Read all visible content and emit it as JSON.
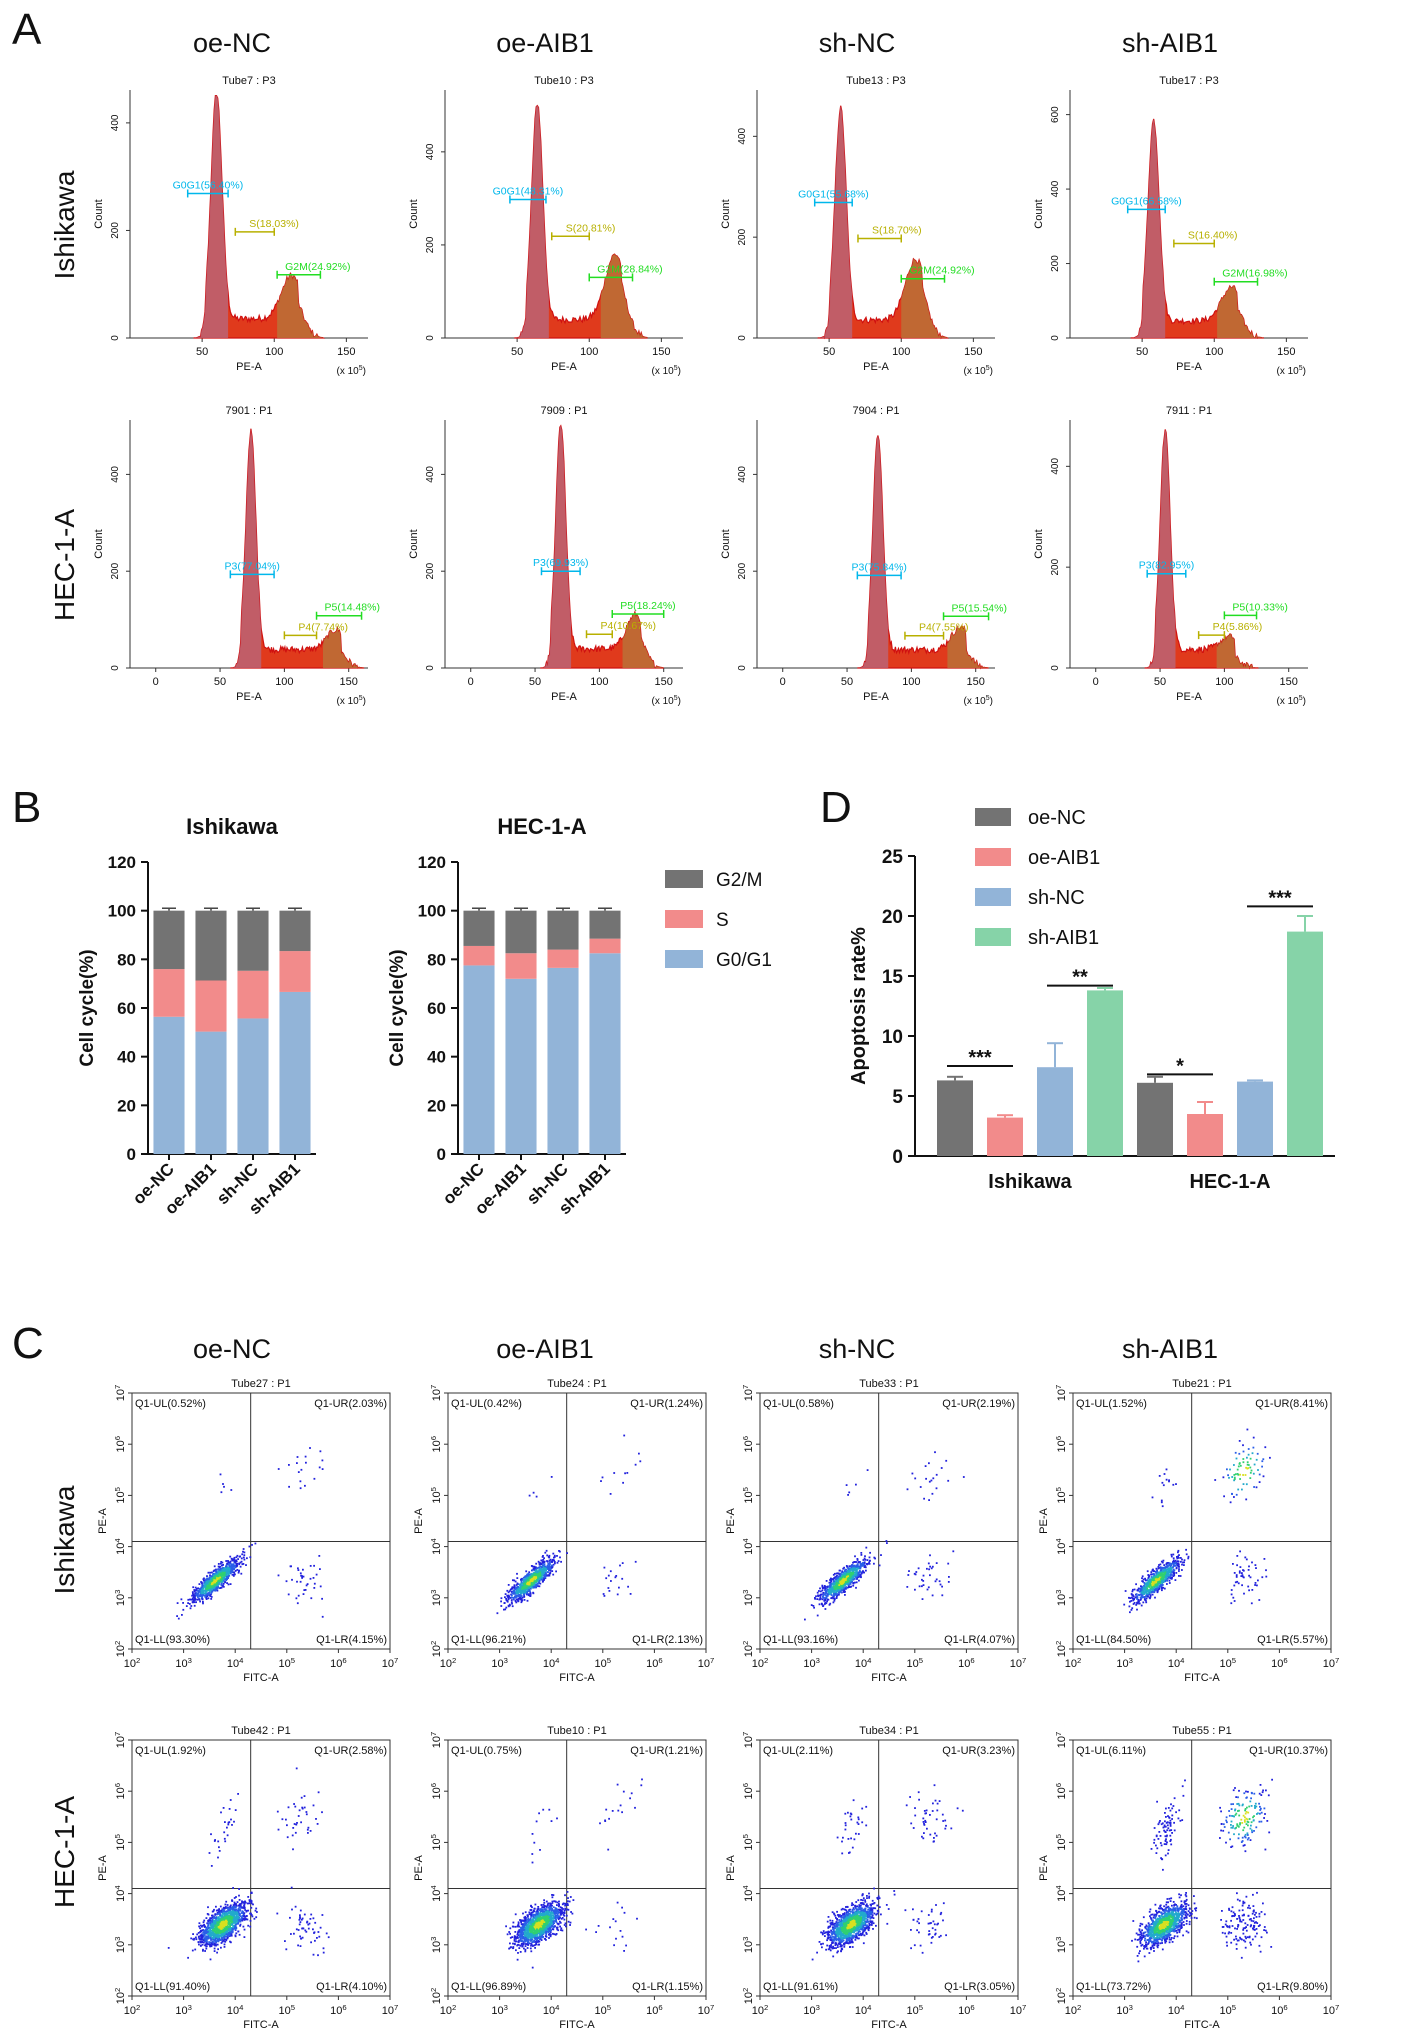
{
  "panel_labels": {
    "A": "A",
    "B": "B",
    "C": "C",
    "D": "D"
  },
  "groups": [
    "oe-NC",
    "oe-AIB1",
    "sh-NC",
    "sh-AIB1"
  ],
  "cell_lines": [
    "Ishikawa",
    "HEC-1-A"
  ],
  "panel_A": {
    "xlabel": "PE-A",
    "ylabel": "Count",
    "x_unit": "(x 10^5)",
    "x_ticks": [
      "50",
      "100",
      "150"
    ],
    "rows": [
      {
        "cell_line": "Ishikawa",
        "x_ticks": [
          "50",
          "100",
          "150"
        ],
        "plots": [
          {
            "title": "Tube7 : P3",
            "y_ticks": [
              "0",
              "200",
              "400"
            ],
            "ymax": 450,
            "x0": 0,
            "peaks": [
              [
                60,
                420
              ],
              [
                112,
                80
              ]
            ],
            "gates": [
              {
                "label": "G0G1(56.40%)",
                "color": "#00b7eb",
                "x1": 40,
                "x2": 68
              },
              {
                "label": "S(18.03%)",
                "color": "#b8b000",
                "x1": 73,
                "x2": 100
              },
              {
                "label": "G2M(24.92%)",
                "color": "#22dd22",
                "x1": 102,
                "x2": 132
              }
            ]
          },
          {
            "title": "Tube10 : P3",
            "y_ticks": [
              "0",
              "200",
              "400"
            ],
            "ymax": 520,
            "x0": 0,
            "peaks": [
              [
                64,
                465
              ],
              [
                118,
                140
              ]
            ],
            "gates": [
              {
                "label": "G0G1(48.31%)",
                "color": "#00b7eb",
                "x1": 45,
                "x2": 70
              },
              {
                "label": "S(20.81%)",
                "color": "#b8b000",
                "x1": 74,
                "x2": 100
              },
              {
                "label": "G2M(28.84%)",
                "color": "#22dd22",
                "x1": 100,
                "x2": 130
              }
            ]
          },
          {
            "title": "Tube13 : P3",
            "y_ticks": [
              "0",
              "200",
              "400"
            ],
            "ymax": 480,
            "x0": 0,
            "peaks": [
              [
                58,
                420
              ],
              [
                110,
                120
              ]
            ],
            "gates": [
              {
                "label": "G0G1(55.68%)",
                "color": "#00b7eb",
                "x1": 40,
                "x2": 66
              },
              {
                "label": "S(18.70%)",
                "color": "#b8b000",
                "x1": 70,
                "x2": 100
              },
              {
                "label": "G2M(24.92%)",
                "color": "#22dd22",
                "x1": 100,
                "x2": 130
              }
            ]
          },
          {
            "title": "Tube17 : P3",
            "y_ticks": [
              "0",
              "200",
              "400",
              "600"
            ],
            "ymax": 650,
            "x0": 0,
            "peaks": [
              [
                58,
                540
              ],
              [
                112,
                90
              ]
            ],
            "gates": [
              {
                "label": "G0G1(66.58%)",
                "color": "#00b7eb",
                "x1": 40,
                "x2": 66
              },
              {
                "label": "S(16.40%)",
                "color": "#b8b000",
                "x1": 72,
                "x2": 100
              },
              {
                "label": "G2M(16.98%)",
                "color": "#22dd22",
                "x1": 100,
                "x2": 130
              }
            ]
          }
        ]
      },
      {
        "cell_line": "HEC-1-A",
        "x_ticks": [
          "0",
          "50",
          "100",
          "150"
        ],
        "plots": [
          {
            "title": "7901 : P1",
            "y_ticks": [
              "0",
              "200",
              "400"
            ],
            "ymax": 500,
            "x0": -20,
            "peaks": [
              [
                74,
                450
              ],
              [
                140,
                40
              ]
            ],
            "gates": [
              {
                "label": "P3(77.04%)",
                "color": "#00b7eb",
                "x1": 58,
                "x2": 92
              },
              {
                "label": "P4(7.74%)",
                "color": "#b8b000",
                "x1": 100,
                "x2": 125
              },
              {
                "label": "P5(14.48%)",
                "color": "#22dd22",
                "x1": 125,
                "x2": 160
              }
            ]
          },
          {
            "title": "7909 : P1",
            "y_ticks": [
              "0",
              "200",
              "400"
            ],
            "ymax": 500,
            "x0": -20,
            "peaks": [
              [
                70,
                465
              ],
              [
                128,
                70
              ]
            ],
            "gates": [
              {
                "label": "P3(69.93%)",
                "color": "#00b7eb",
                "x1": 55,
                "x2": 85
              },
              {
                "label": "P4(10.67%)",
                "color": "#b8b000",
                "x1": 90,
                "x2": 110
              },
              {
                "label": "P5(18.24%)",
                "color": "#22dd22",
                "x1": 110,
                "x2": 150
              }
            ]
          },
          {
            "title": "7904 : P1",
            "y_ticks": [
              "0",
              "200",
              "400"
            ],
            "ymax": 500,
            "x0": -20,
            "peaks": [
              [
                74,
                445
              ],
              [
                138,
                45
              ]
            ],
            "gates": [
              {
                "label": "P3(75.84%)",
                "color": "#00b7eb",
                "x1": 58,
                "x2": 92
              },
              {
                "label": "P4(7.55%)",
                "color": "#b8b000",
                "x1": 95,
                "x2": 125
              },
              {
                "label": "P5(15.54%)",
                "color": "#22dd22",
                "x1": 125,
                "x2": 160
              }
            ]
          },
          {
            "title": "7911 : P1",
            "y_ticks": [
              "0",
              "200",
              "400"
            ],
            "ymax": 480,
            "x0": -20,
            "peaks": [
              [
                54,
                435
              ],
              [
                104,
                25
              ]
            ],
            "gates": [
              {
                "label": "P3(82.95%)",
                "color": "#00b7eb",
                "x1": 40,
                "x2": 70
              },
              {
                "label": "P4(5.86%)",
                "color": "#b8b000",
                "x1": 80,
                "x2": 100
              },
              {
                "label": "P5(10.33%)",
                "color": "#22dd22",
                "x1": 100,
                "x2": 125
              }
            ]
          }
        ]
      }
    ]
  },
  "chart_data": [
    {
      "id": "B1",
      "type": "bar",
      "stacked": true,
      "title": "Ishikawa",
      "ylabel": "Cell cycle(%)",
      "ylim": [
        0,
        120
      ],
      "yticks": [
        0,
        20,
        40,
        60,
        80,
        100,
        120
      ],
      "categories": [
        "oe-NC",
        "oe-AIB1",
        "sh-NC",
        "sh-AIB1"
      ],
      "series": [
        {
          "name": "G0/G1",
          "color": "#92b4d8",
          "values": [
            56.4,
            50.3,
            55.7,
            66.6
          ]
        },
        {
          "name": "S",
          "color": "#f28b8b",
          "values": [
            19.6,
            21.0,
            19.6,
            16.8
          ]
        },
        {
          "name": "G2/M",
          "color": "#737373",
          "values": [
            24.0,
            28.7,
            24.7,
            16.6
          ]
        }
      ]
    },
    {
      "id": "B2",
      "type": "bar",
      "stacked": true,
      "title": "HEC-1-A",
      "ylabel": "Cell cycle(%)",
      "ylim": [
        0,
        120
      ],
      "yticks": [
        0,
        20,
        40,
        60,
        80,
        100,
        120
      ],
      "categories": [
        "oe-NC",
        "oe-AIB1",
        "sh-NC",
        "sh-AIB1"
      ],
      "series": [
        {
          "name": "G0/G1",
          "color": "#92b4d8",
          "values": [
            77.5,
            72.0,
            76.5,
            82.5
          ]
        },
        {
          "name": "S",
          "color": "#f28b8b",
          "values": [
            8.0,
            10.5,
            7.5,
            6.0
          ]
        },
        {
          "name": "G2/M",
          "color": "#737373",
          "values": [
            14.5,
            17.5,
            16.0,
            11.5
          ]
        }
      ],
      "legend": [
        "G2/M",
        "S",
        "G0/G1"
      ]
    },
    {
      "id": "D",
      "type": "bar",
      "title": "",
      "ylabel": "Apoptosis rate%",
      "ylim": [
        0,
        25
      ],
      "yticks": [
        0,
        5,
        10,
        15,
        20,
        25
      ],
      "categories": [
        "Ishikawa",
        "HEC-1-A"
      ],
      "series": [
        {
          "name": "oe-NC",
          "color": "#737373",
          "values": [
            6.3,
            6.1
          ],
          "errors": [
            0.3,
            0.5
          ]
        },
        {
          "name": "oe-AIB1",
          "color": "#f28b8b",
          "values": [
            3.2,
            3.5
          ],
          "errors": [
            0.2,
            1.0
          ]
        },
        {
          "name": "sh-NC",
          "color": "#92b4d8",
          "values": [
            7.4,
            6.2
          ],
          "errors": [
            2.0,
            0.1
          ]
        },
        {
          "name": "sh-AIB1",
          "color": "#86d3a8",
          "values": [
            13.8,
            18.7
          ],
          "errors": [
            0.2,
            1.3
          ]
        }
      ],
      "significance": [
        {
          "category": "Ishikawa",
          "label": "***",
          "pair": [
            "oe-NC",
            "oe-AIB1"
          ],
          "y": 7.5
        },
        {
          "category": "Ishikawa",
          "label": "**",
          "pair": [
            "sh-NC",
            "sh-AIB1"
          ],
          "y": 14.2
        },
        {
          "category": "HEC-1-A",
          "label": "*",
          "pair": [
            "oe-NC",
            "oe-AIB1"
          ],
          "y": 6.8
        },
        {
          "category": "HEC-1-A",
          "label": "***",
          "pair": [
            "sh-NC",
            "sh-AIB1"
          ],
          "y": 20.8
        }
      ],
      "legend": [
        "oe-NC",
        "oe-AIB1",
        "sh-NC",
        "sh-AIB1"
      ]
    },
    {
      "id": "C",
      "type": "scatter",
      "xlabel": "FITC-A",
      "ylabel": "PE-A",
      "x_ticks": [
        "10^2",
        "10^3",
        "10^4",
        "10^5",
        "10^6",
        "10^7"
      ],
      "y_ticks": [
        "10^2",
        "10^3",
        "10^4",
        "10^5",
        "10^6",
        "10^7"
      ],
      "rows": [
        {
          "cell_line": "Ishikawa",
          "plots": [
            {
              "title": "Tube27 : P1",
              "quadrants": {
                "UL": "Q1-UL(0.52%)",
                "UR": "Q1-UR(2.03%)",
                "LL": "Q1-LL(93.30%)",
                "LR": "Q1-LR(4.15%)"
              },
              "fractions": [
                0.52,
                2.03,
                93.3,
                4.15
              ]
            },
            {
              "title": "Tube24 : P1",
              "quadrants": {
                "UL": "Q1-UL(0.42%)",
                "UR": "Q1-UR(1.24%)",
                "LL": "Q1-LL(96.21%)",
                "LR": "Q1-LR(2.13%)"
              },
              "fractions": [
                0.42,
                1.24,
                96.21,
                2.13
              ]
            },
            {
              "title": "Tube33 : P1",
              "quadrants": {
                "UL": "Q1-UL(0.58%)",
                "UR": "Q1-UR(2.19%)",
                "LL": "Q1-LL(93.16%)",
                "LR": "Q1-LR(4.07%)"
              },
              "fractions": [
                0.58,
                2.19,
                93.16,
                4.07
              ]
            },
            {
              "title": "Tube21 : P1",
              "quadrants": {
                "UL": "Q1-UL(1.52%)",
                "UR": "Q1-UR(8.41%)",
                "LL": "Q1-LL(84.50%)",
                "LR": "Q1-LR(5.57%)"
              },
              "fractions": [
                1.52,
                8.41,
                84.5,
                5.57
              ]
            }
          ]
        },
        {
          "cell_line": "HEC-1-A",
          "plots": [
            {
              "title": "Tube42 : P1",
              "quadrants": {
                "UL": "Q1-UL(1.92%)",
                "UR": "Q1-UR(2.58%)",
                "LL": "Q1-LL(91.40%)",
                "LR": "Q1-LR(4.10%)"
              },
              "fractions": [
                1.92,
                2.58,
                91.4,
                4.1
              ]
            },
            {
              "title": "Tube10 : P1",
              "quadrants": {
                "UL": "Q1-UL(0.75%)",
                "UR": "Q1-UR(1.21%)",
                "LL": "Q1-LL(96.89%)",
                "LR": "Q1-LR(1.15%)"
              },
              "fractions": [
                0.75,
                1.21,
                96.89,
                1.15
              ]
            },
            {
              "title": "Tube34 : P1",
              "quadrants": {
                "UL": "Q1-UL(2.11%)",
                "UR": "Q1-UR(3.23%)",
                "LL": "Q1-LL(91.61%)",
                "LR": "Q1-LR(3.05%)"
              },
              "fractions": [
                2.11,
                3.23,
                91.61,
                3.05
              ]
            },
            {
              "title": "Tube55 : P1",
              "quadrants": {
                "UL": "Q1-UL(6.11%)",
                "UR": "Q1-UR(10.37%)",
                "LL": "Q1-LL(73.72%)",
                "LR": "Q1-LR(9.80%)"
              },
              "fractions": [
                6.11,
                10.37,
                73.72,
                9.8
              ]
            }
          ]
        }
      ]
    }
  ]
}
